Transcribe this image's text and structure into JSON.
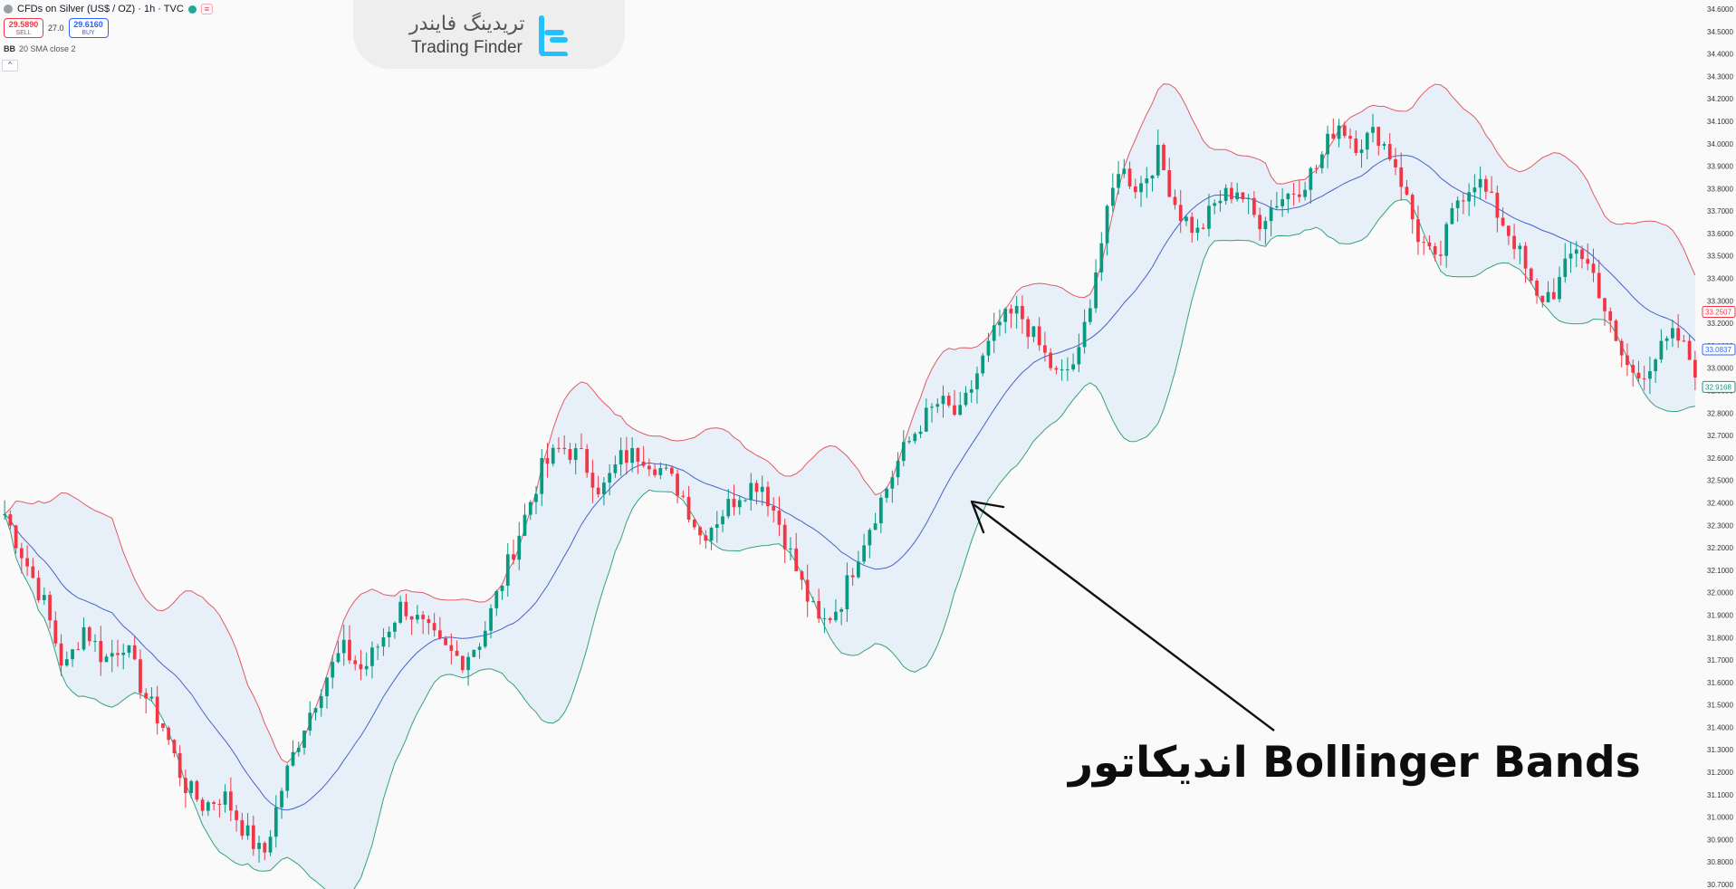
{
  "header": {
    "symbol": "CFDs on Silver (US$ / OZ) · 1h · TVC",
    "tag": "≡",
    "sell_price": "29.5890",
    "sell_label": "SELL",
    "spread": "27.0",
    "buy_price": "29.6160",
    "buy_label": "BUY",
    "indicator_short": "BB",
    "indicator": "20 SMA close 2",
    "collapse_icon": "^"
  },
  "watermark": {
    "persian": "تریدینگ فایندر",
    "english": "Trading Finder"
  },
  "annotation": {
    "text": "اندیکاتور Bollinger Bands"
  },
  "colors": {
    "up": "#089981",
    "down": "#f23645",
    "upper_band": "#e05a65",
    "lower_band": "#36a27a",
    "basis": "#4463c8",
    "band_fill": "#e7f0f9",
    "arrow": "#111111"
  },
  "chart_data": {
    "type": "candlestick",
    "series": [
      {
        "name": "BB Upper"
      },
      {
        "name": "BB Basis"
      },
      {
        "name": "BB Lower"
      }
    ],
    "y_axis": {
      "min": 30.7,
      "max": 34.6,
      "tick_step": 0.1,
      "labels": [
        "34.6000",
        "34.5000",
        "34.4000",
        "34.3000",
        "34.2000",
        "34.1000",
        "34.0000",
        "33.9000",
        "33.8000",
        "33.7000",
        "33.6000",
        "33.5000",
        "33.4000",
        "33.3000",
        "33.2000",
        "33.1000",
        "33.0000",
        "32.9000",
        "32.8000",
        "32.7000",
        "32.6000",
        "32.5000",
        "32.4000",
        "32.3000",
        "32.2000",
        "32.1000",
        "32.0000",
        "31.9000",
        "31.8000",
        "31.7000",
        "31.6000",
        "31.5000",
        "31.4000",
        "31.3000",
        "31.2000",
        "31.1000",
        "31.0000",
        "30.9000",
        "30.8000",
        "30.7000"
      ]
    },
    "price_tags": [
      {
        "value": "33.2507",
        "price": 33.2507,
        "color": "#f23645"
      },
      {
        "value": "33.0837",
        "price": 33.0837,
        "color": "#2962ff"
      },
      {
        "value": "32.9168",
        "price": 32.9168,
        "color": "#089981"
      }
    ],
    "close_path": [
      32.35,
      32.15,
      31.95,
      31.65,
      31.85,
      31.7,
      31.78,
      31.55,
      31.4,
      31.15,
      31.05,
      31.1,
      30.95,
      30.82,
      31.15,
      31.4,
      31.6,
      31.75,
      31.65,
      31.8,
      31.95,
      31.85,
      31.75,
      31.7,
      31.8,
      32.05,
      32.3,
      32.55,
      32.65,
      32.6,
      32.45,
      32.6,
      32.62,
      32.55,
      32.45,
      32.25,
      32.35,
      32.45,
      32.5,
      32.3,
      32.05,
      31.85,
      31.95,
      32.2,
      32.4,
      32.6,
      32.75,
      32.85,
      32.78,
      33.0,
      33.2,
      33.25,
      33.1,
      32.95,
      33.05,
      33.5,
      33.9,
      33.8,
      33.95,
      33.7,
      33.6,
      33.75,
      33.8,
      33.65,
      33.75,
      33.8,
      33.9,
      34.1,
      34.0,
      34.05,
      33.9,
      33.6,
      33.45,
      33.75,
      33.85,
      33.7,
      33.55,
      33.3,
      33.35,
      33.55,
      33.4,
      33.1,
      32.95,
      33.05,
      33.15,
      33.0
    ]
  }
}
